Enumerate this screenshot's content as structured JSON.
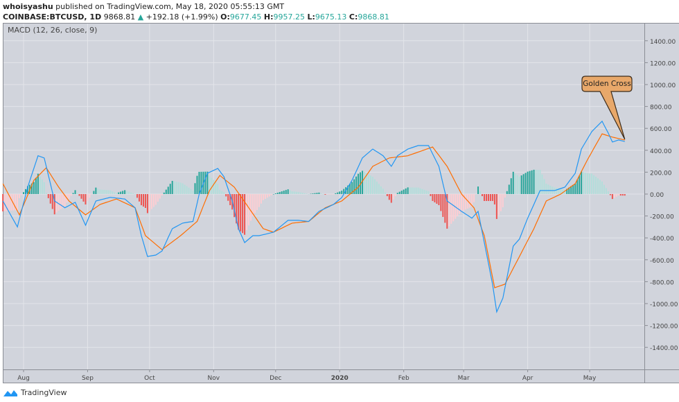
{
  "header": {
    "author": "whoisyashu",
    "published": "published on TradingView.com, May 18, 2020 05:55:13 GMT",
    "symbol": "COINBASE:BTCUSD, 1D",
    "last": "9868.81",
    "change": "+192.18 (+1.99%)",
    "o_label": "O:",
    "o": "9677.45",
    "h_label": "H:",
    "h": "9957.25",
    "l_label": "L:",
    "l": "9675.13",
    "c_label": "C:",
    "c": "9868.81"
  },
  "footer": {
    "brand": "TradingView"
  },
  "colors": {
    "background": "#d1d4dc",
    "macd": "#2196f3",
    "signal": "#ff6d00",
    "hist_up_strong": "#26a69a",
    "hist_up_weak": "#b2dfdb",
    "hist_down_strong": "#ef5350",
    "hist_down_weak": "#ffcdd2",
    "annotation": "#e8a86a"
  },
  "chart_data": {
    "type": "line",
    "title": "MACD (12, 26, close, 9)",
    "ylim": [
      -1550,
      1500
    ],
    "yticks": [
      1400,
      1200,
      1000,
      800,
      600,
      400,
      200,
      0,
      -200,
      -400,
      -600,
      -800,
      -1000,
      -1200,
      -1400
    ],
    "ytick_labels": [
      "1400.00",
      "1200.00",
      "1000.00",
      "800.00",
      "600.00",
      "400.00",
      "200.00",
      "0.00",
      "-200.00",
      "-400.00",
      "-600.00",
      "-800.00",
      "-1000.00",
      "-1200.00",
      "-1400.00"
    ],
    "xlim": [
      "2019-07-22",
      "2020-05-28"
    ],
    "xticks": [
      {
        "date": "2019-08-01",
        "label": "Aug"
      },
      {
        "date": "2019-09-01",
        "label": "Sep"
      },
      {
        "date": "2019-10-01",
        "label": "Oct"
      },
      {
        "date": "2019-11-01",
        "label": "Nov"
      },
      {
        "date": "2019-12-01",
        "label": "Dec"
      },
      {
        "date": "2020-01-01",
        "label": "2020"
      },
      {
        "date": "2020-02-01",
        "label": "Feb"
      },
      {
        "date": "2020-03-01",
        "label": "Mar"
      },
      {
        "date": "2020-04-01",
        "label": "Apr"
      },
      {
        "date": "2020-05-01",
        "label": "May"
      }
    ],
    "grid": true,
    "annotation": {
      "text": "Golden Cross",
      "date": "2020-05-18",
      "value": 500
    },
    "series": [
      {
        "key": "macd",
        "points": [
          [
            "2019-07-22",
            -63
          ],
          [
            "2019-07-29",
            -300
          ],
          [
            "2019-08-03",
            63
          ],
          [
            "2019-08-08",
            350
          ],
          [
            "2019-08-11",
            330
          ],
          [
            "2019-08-16",
            -63
          ],
          [
            "2019-08-21",
            -125
          ],
          [
            "2019-08-26",
            -75
          ],
          [
            "2019-08-31",
            -285
          ],
          [
            "2019-09-05",
            -63
          ],
          [
            "2019-09-12",
            -30
          ],
          [
            "2019-09-19",
            -45
          ],
          [
            "2019-09-24",
            -125
          ],
          [
            "2019-09-27",
            -380
          ],
          [
            "2019-09-30",
            -570
          ],
          [
            "2019-10-04",
            -557
          ],
          [
            "2019-10-07",
            -520
          ],
          [
            "2019-10-12",
            -316
          ],
          [
            "2019-10-17",
            -265
          ],
          [
            "2019-10-22",
            -250
          ],
          [
            "2019-10-25",
            0
          ],
          [
            "2019-10-29",
            190
          ],
          [
            "2019-11-03",
            234
          ],
          [
            "2019-11-06",
            158
          ],
          [
            "2019-11-10",
            -63
          ],
          [
            "2019-11-13",
            -316
          ],
          [
            "2019-11-16",
            -443
          ],
          [
            "2019-11-20",
            -380
          ],
          [
            "2019-11-23",
            -380
          ],
          [
            "2019-11-30",
            -348
          ],
          [
            "2019-12-07",
            -240
          ],
          [
            "2019-12-12",
            -240
          ],
          [
            "2019-12-17",
            -250
          ],
          [
            "2019-12-22",
            -158
          ],
          [
            "2019-12-29",
            -95
          ],
          [
            "2020-01-02",
            -32
          ],
          [
            "2020-01-07",
            126
          ],
          [
            "2020-01-12",
            330
          ],
          [
            "2020-01-17",
            411
          ],
          [
            "2020-01-22",
            350
          ],
          [
            "2020-01-26",
            253
          ],
          [
            "2020-01-29",
            350
          ],
          [
            "2020-02-03",
            411
          ],
          [
            "2020-02-08",
            443
          ],
          [
            "2020-02-13",
            443
          ],
          [
            "2020-02-18",
            253
          ],
          [
            "2020-02-22",
            -63
          ],
          [
            "2020-02-29",
            -158
          ],
          [
            "2020-03-05",
            -220
          ],
          [
            "2020-03-08",
            -158
          ],
          [
            "2020-03-11",
            -443
          ],
          [
            "2020-03-15",
            -823
          ],
          [
            "2020-03-17",
            -1076
          ],
          [
            "2020-03-20",
            -950
          ],
          [
            "2020-03-25",
            -475
          ],
          [
            "2020-03-28",
            -411
          ],
          [
            "2020-04-01",
            -220
          ],
          [
            "2020-04-07",
            32
          ],
          [
            "2020-04-14",
            32
          ],
          [
            "2020-04-19",
            63
          ],
          [
            "2020-04-24",
            190
          ],
          [
            "2020-04-27",
            411
          ],
          [
            "2020-05-02",
            570
          ],
          [
            "2020-05-07",
            665
          ],
          [
            "2020-05-10",
            557
          ],
          [
            "2020-05-12",
            475
          ],
          [
            "2020-05-15",
            494
          ],
          [
            "2020-05-18",
            480
          ]
        ]
      },
      {
        "key": "signal",
        "points": [
          [
            "2019-07-22",
            95
          ],
          [
            "2019-07-30",
            -190
          ],
          [
            "2019-08-06",
            126
          ],
          [
            "2019-08-12",
            240
          ],
          [
            "2019-08-18",
            63
          ],
          [
            "2019-08-23",
            -63
          ],
          [
            "2019-08-31",
            -190
          ],
          [
            "2019-09-07",
            -95
          ],
          [
            "2019-09-15",
            -45
          ],
          [
            "2019-09-24",
            -125
          ],
          [
            "2019-09-29",
            -380
          ],
          [
            "2019-10-07",
            -507
          ],
          [
            "2019-10-16",
            -380
          ],
          [
            "2019-10-24",
            -250
          ],
          [
            "2019-10-30",
            32
          ],
          [
            "2019-11-04",
            170
          ],
          [
            "2019-11-11",
            63
          ],
          [
            "2019-11-18",
            -125
          ],
          [
            "2019-11-25",
            -316
          ],
          [
            "2019-11-30",
            -348
          ],
          [
            "2019-12-09",
            -265
          ],
          [
            "2019-12-17",
            -250
          ],
          [
            "2019-12-25",
            -125
          ],
          [
            "2020-01-02",
            -63
          ],
          [
            "2020-01-10",
            63
          ],
          [
            "2020-01-17",
            253
          ],
          [
            "2020-01-25",
            330
          ],
          [
            "2020-02-03",
            350
          ],
          [
            "2020-02-15",
            430
          ],
          [
            "2020-02-22",
            253
          ],
          [
            "2020-02-29",
            0
          ],
          [
            "2020-03-06",
            -125
          ],
          [
            "2020-03-11",
            -380
          ],
          [
            "2020-03-16",
            -855
          ],
          [
            "2020-03-21",
            -823
          ],
          [
            "2020-03-28",
            -570
          ],
          [
            "2020-04-04",
            -316
          ],
          [
            "2020-04-10",
            -63
          ],
          [
            "2020-04-17",
            0
          ],
          [
            "2020-04-24",
            95
          ],
          [
            "2020-04-30",
            316
          ],
          [
            "2020-05-07",
            550
          ],
          [
            "2020-05-12",
            520
          ],
          [
            "2020-05-18",
            494
          ]
        ]
      }
    ]
  }
}
